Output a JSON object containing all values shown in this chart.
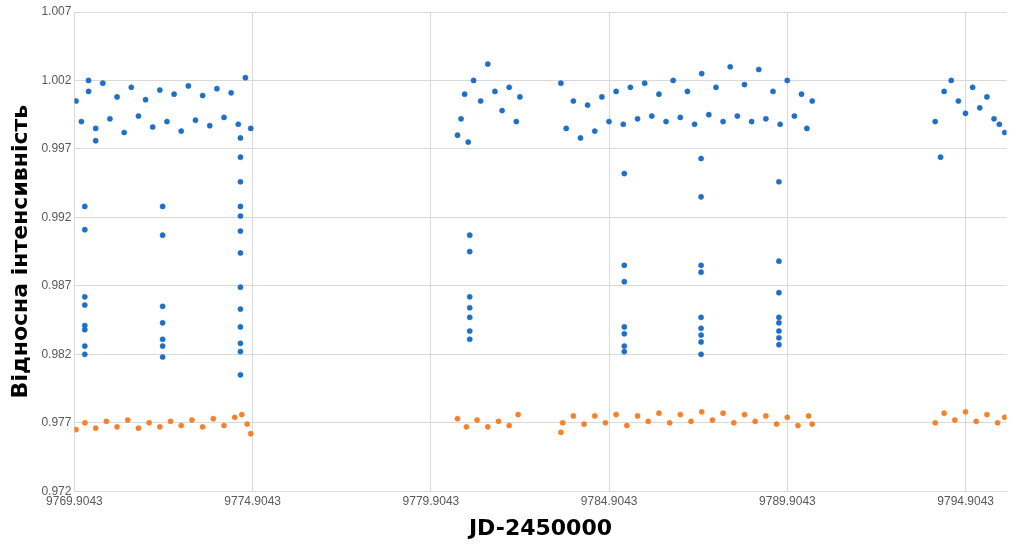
{
  "chart_data": {
    "type": "scatter",
    "xlabel": "JD-2450000",
    "ylabel": "Відносна інтенсивність",
    "xlim": [
      9769.9043,
      9796.05
    ],
    "xticks": [
      9769.9043,
      9774.9043,
      9779.9043,
      9784.9043,
      9789.9043,
      9794.9043
    ],
    "ylim": [
      0.972,
      1.007
    ],
    "yticks": [
      0.972,
      0.977,
      0.982,
      0.987,
      0.992,
      0.997,
      1.002,
      1.007
    ],
    "grid": true,
    "legend": false,
    "marker": "circle",
    "series": [
      {
        "color": "#1f6fc5",
        "x": [
          9769.95,
          9770.1,
          9770.3,
          9770.3,
          9770.5,
          9770.5,
          9770.7,
          9770.9,
          9771.1,
          9771.3,
          9771.5,
          9771.7,
          9771.9,
          9772.1,
          9772.3,
          9772.5,
          9772.7,
          9772.9,
          9773.1,
          9773.3,
          9773.5,
          9773.7,
          9773.9,
          9774.1,
          9774.3,
          9774.5,
          9774.7,
          9774.85,
          9780.65,
          9780.75,
          9780.85,
          9780.95,
          9781.1,
          9781.3,
          9781.5,
          9781.7,
          9781.9,
          9782.1,
          9782.3,
          9782.4,
          9783.55,
          9783.7,
          9783.9,
          9784.1,
          9784.3,
          9784.5,
          9784.7,
          9784.9,
          9785.1,
          9785.3,
          9785.5,
          9785.7,
          9785.9,
          9786.1,
          9786.3,
          9786.5,
          9786.7,
          9786.9,
          9787.1,
          9787.3,
          9787.5,
          9787.7,
          9787.9,
          9788.1,
          9788.3,
          9788.5,
          9788.7,
          9788.9,
          9789.1,
          9789.3,
          9789.5,
          9789.7,
          9789.9,
          9790.1,
          9790.3,
          9790.45,
          9790.6,
          9794.05,
          9794.2,
          9794.3,
          9794.5,
          9794.7,
          9794.9,
          9795.1,
          9795.3,
          9795.5,
          9795.7,
          9795.85,
          9796.0,
          9770.195,
          9770.195,
          9770.195,
          9770.195,
          9770.195,
          9770.195,
          9770.195,
          9770.195,
          9772.378,
          9772.378,
          9772.378,
          9772.378,
          9772.378,
          9772.378,
          9772.378,
          9774.561,
          9774.561,
          9774.561,
          9774.561,
          9774.561,
          9774.561,
          9774.561,
          9774.561,
          9774.561,
          9774.561,
          9774.561,
          9774.561,
          9774.561,
          9780.993,
          9780.993,
          9780.993,
          9780.993,
          9780.993,
          9780.993,
          9780.993,
          9785.329,
          9785.329,
          9785.329,
          9785.329,
          9785.329,
          9785.329,
          9785.329,
          9787.483,
          9787.483,
          9787.483,
          9787.483,
          9787.483,
          9787.483,
          9787.483,
          9787.483,
          9787.483,
          9789.666,
          9789.666,
          9789.666,
          9789.666,
          9789.666,
          9789.666,
          9789.666,
          9789.666
        ],
        "values": [
          1.0005,
          0.999,
          1.0012,
          1.002,
          0.9985,
          0.9976,
          1.0018,
          0.9992,
          1.0008,
          0.9982,
          1.0015,
          0.9994,
          1.0006,
          0.9986,
          1.0013,
          0.999,
          1.001,
          0.9983,
          1.0016,
          0.9991,
          1.0009,
          0.9987,
          1.0014,
          0.9993,
          1.0011,
          0.9988,
          1.0022,
          0.9985,
          0.998,
          0.9992,
          1.001,
          0.9975,
          1.002,
          1.0005,
          1.0032,
          1.0012,
          0.9998,
          1.0015,
          0.999,
          1.0008,
          1.0018,
          0.9985,
          1.0005,
          0.9978,
          1.0002,
          0.9983,
          1.0008,
          0.999,
          1.0012,
          0.9988,
          1.0015,
          0.9992,
          1.0018,
          0.9994,
          1.001,
          0.999,
          1.002,
          0.9993,
          1.0012,
          0.9988,
          1.0025,
          0.9995,
          1.0015,
          0.999,
          1.003,
          0.9994,
          1.0017,
          0.999,
          1.0028,
          0.9992,
          1.0012,
          0.9988,
          1.002,
          0.9994,
          1.001,
          0.9985,
          1.0005,
          0.999,
          0.9964,
          1.0012,
          1.002,
          1.0005,
          0.9996,
          1.0015,
          1.0,
          1.0008,
          0.9992,
          0.9988,
          0.9982,
          0.9928,
          0.9911,
          0.9862,
          0.9856,
          0.9841,
          0.9838,
          0.9826,
          0.982,
          0.9928,
          0.9907,
          0.9855,
          0.9843,
          0.9831,
          0.9826,
          0.9818,
          0.9978,
          0.9964,
          0.9946,
          0.9928,
          0.9921,
          0.991,
          0.9894,
          0.9869,
          0.9853,
          0.984,
          0.9828,
          0.9822,
          0.9805,
          0.9907,
          0.9895,
          0.9862,
          0.9854,
          0.9847,
          0.9837,
          0.9831,
          0.9952,
          0.9885,
          0.9873,
          0.984,
          0.9835,
          0.9826,
          0.9822,
          0.9963,
          0.9935,
          0.9885,
          0.988,
          0.9847,
          0.9839,
          0.9834,
          0.9829,
          0.982,
          0.9946,
          0.9888,
          0.9865,
          0.9847,
          0.9843,
          0.9837,
          0.9832,
          0.9827
        ]
      },
      {
        "color": "#f5822a",
        "x": [
          9769.95,
          9770.2,
          9770.5,
          9770.8,
          9771.1,
          9771.4,
          9771.7,
          9772.0,
          9772.3,
          9772.6,
          9772.9,
          9773.2,
          9773.5,
          9773.8,
          9774.1,
          9774.4,
          9774.6,
          9774.75,
          9774.85,
          9780.65,
          9780.9,
          9781.2,
          9781.5,
          9781.8,
          9782.1,
          9782.35,
          9783.55,
          9783.6,
          9783.9,
          9784.2,
          9784.5,
          9784.8,
          9785.1,
          9785.4,
          9785.7,
          9786.0,
          9786.3,
          9786.6,
          9786.9,
          9787.2,
          9787.5,
          9787.8,
          9788.1,
          9788.4,
          9788.7,
          9789.0,
          9789.3,
          9789.6,
          9789.9,
          9790.2,
          9790.5,
          9790.6,
          9794.05,
          9794.3,
          9794.6,
          9794.9,
          9795.2,
          9795.5,
          9795.8,
          9796.0
        ],
        "values": [
          0.9765,
          0.977,
          0.9766,
          0.9771,
          0.9767,
          0.9772,
          0.9766,
          0.977,
          0.9767,
          0.9771,
          0.9768,
          0.9772,
          0.9767,
          0.9773,
          0.9768,
          0.9774,
          0.9776,
          0.9769,
          0.9762,
          0.9773,
          0.9767,
          0.9772,
          0.9767,
          0.9771,
          0.9768,
          0.9776,
          0.9763,
          0.977,
          0.9775,
          0.9769,
          0.9775,
          0.977,
          0.9776,
          0.9768,
          0.9775,
          0.9771,
          0.9777,
          0.977,
          0.9776,
          0.9771,
          0.9778,
          0.9772,
          0.9777,
          0.977,
          0.9776,
          0.9771,
          0.9775,
          0.9769,
          0.9774,
          0.9768,
          0.9775,
          0.9769,
          0.977,
          0.9777,
          0.9772,
          0.9778,
          0.9771,
          0.9776,
          0.977,
          0.9774
        ]
      }
    ]
  }
}
